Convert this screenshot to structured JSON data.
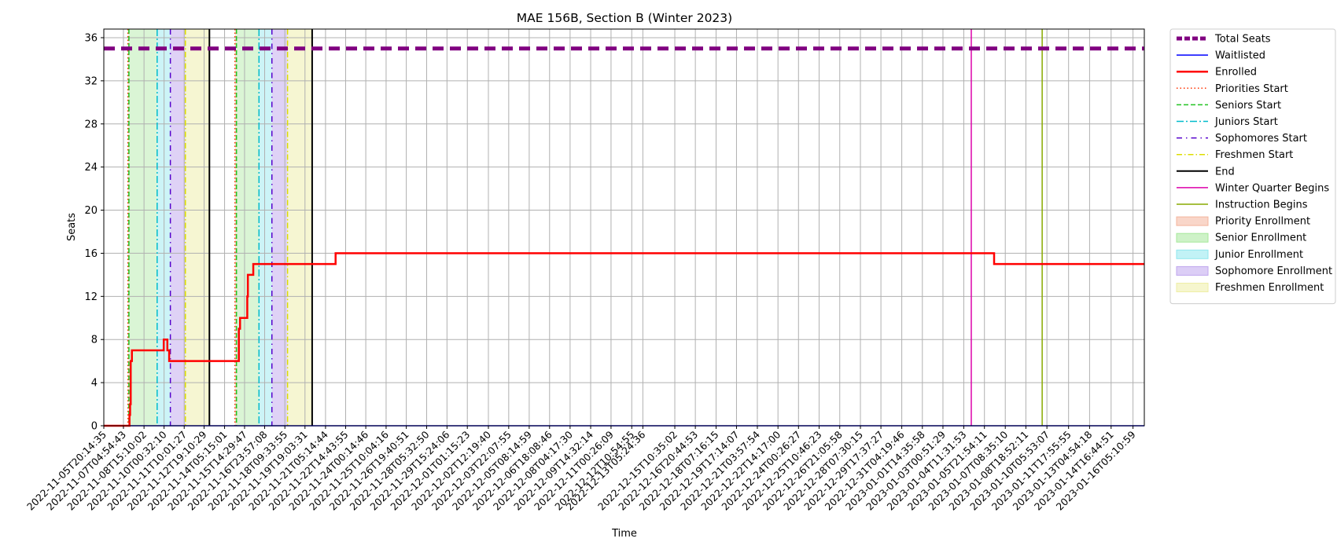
{
  "chart_data": {
    "type": "line",
    "title": "MAE 156B, Section B (Winter 2023)",
    "xlabel": "Time",
    "ylabel": "Seats",
    "ylim": [
      0,
      36.8
    ],
    "y_ticks": [
      0,
      4,
      8,
      12,
      16,
      20,
      24,
      28,
      32,
      36
    ],
    "x_range": [
      "2022-11-05T20:14:35",
      "2023-01-17T00:00:00"
    ],
    "x_tick_labels": [
      "2022-11-05T20:14:35",
      "2022-11-07T04:54:43",
      "2022-11-08T15:10:02",
      "2022-11-10T00:32:10",
      "2022-11-11T10:01:27",
      "2022-11-12T19:10:29",
      "2022-11-14T05:15:01",
      "2022-11-15T14:29:47",
      "2022-11-16T23:57:08",
      "2022-11-18T09:33:55",
      "2022-11-19T19:03:31",
      "2022-11-21T05:14:44",
      "2022-11-22T14:43:55",
      "2022-11-24T00:14:46",
      "2022-11-25T10:04:16",
      "2022-11-26T19:40:51",
      "2022-11-28T05:32:50",
      "2022-11-29T15:24:06",
      "2022-12-01T01:15:23",
      "2022-12-02T12:19:40",
      "2022-12-03T22:07:55",
      "2022-12-05T08:14:59",
      "2022-12-06T18:08:46",
      "2022-12-08T04:17:30",
      "2022-12-09T14:32:14",
      "2022-12-11T00:26:09",
      "2022-12-12T10:54:55",
      "2022-12-13T05:24:36",
      "2022-12-15T10:35:02",
      "2022-12-16T20:44:53",
      "2022-12-18T07:16:15",
      "2022-12-19T17:14:07",
      "2022-12-21T03:57:54",
      "2022-12-22T14:17:00",
      "2022-12-24T00:26:27",
      "2022-12-25T10:46:23",
      "2022-12-26T21:05:58",
      "2022-12-28T07:30:15",
      "2022-12-29T17:37:27",
      "2022-12-31T04:19:46",
      "2023-01-01T14:35:58",
      "2023-01-03T00:51:29",
      "2023-01-04T11:31:53",
      "2023-01-05T21:54:11",
      "2023-01-07T08:35:10",
      "2023-01-08T18:52:11",
      "2023-01-10T05:53:07",
      "2023-01-11T17:55:55",
      "2023-01-13T04:54:18",
      "2023-01-14T16:44:51",
      "2023-01-16T05:10:59"
    ],
    "series": [
      {
        "name": "Total Seats",
        "color": "#800080",
        "style": "thick-dashed",
        "values": [
          [
            "2022-11-05T20:14:35",
            35
          ],
          [
            "2023-01-17T00:00:00",
            35
          ]
        ]
      },
      {
        "name": "Waitlisted",
        "color": "#0000ff",
        "style": "solid",
        "values": [
          [
            "2022-11-05T20:14:35",
            0
          ],
          [
            "2023-01-17T00:00:00",
            0
          ]
        ]
      },
      {
        "name": "Enrolled",
        "color": "#ff0000",
        "style": "step",
        "values": [
          [
            "2022-11-05T20:14:35",
            0
          ],
          [
            "2022-11-07T14:30:00",
            0
          ],
          [
            "2022-11-07T15:00:00",
            1
          ],
          [
            "2022-11-07T16:00:00",
            2
          ],
          [
            "2022-11-07T17:00:00",
            6
          ],
          [
            "2022-11-07T19:00:00",
            7
          ],
          [
            "2022-11-10T00:00:00",
            8
          ],
          [
            "2022-11-10T06:00:00",
            7
          ],
          [
            "2022-11-10T09:00:00",
            6
          ],
          [
            "2022-11-15T04:00:00",
            6
          ],
          [
            "2022-11-15T05:00:00",
            9
          ],
          [
            "2022-11-15T07:00:00",
            10
          ],
          [
            "2022-11-15T19:00:00",
            12
          ],
          [
            "2022-11-15T20:00:00",
            14
          ],
          [
            "2022-11-16T05:00:00",
            15
          ],
          [
            "2022-11-21T20:00:00",
            15
          ],
          [
            "2022-11-21T22:00:00",
            16
          ],
          [
            "2023-01-06T13:00:00",
            16
          ],
          [
            "2023-01-06T14:00:00",
            15
          ],
          [
            "2023-01-17T00:00:00",
            15
          ]
        ]
      }
    ],
    "vertical_lines": [
      {
        "name": "Priorities Start",
        "color": "#ff3300",
        "dash": "1.5,3",
        "x": [
          "2022-11-07T12:20:00",
          "2022-11-14T22:30:00"
        ]
      },
      {
        "name": "Seniors Start",
        "color": "#22c422",
        "dash": "6,3",
        "x": [
          "2022-11-07T14:00:00",
          "2022-11-15T01:00:00"
        ]
      },
      {
        "name": "Juniors Start",
        "color": "#00bbcc",
        "dash": "9,3,2,3",
        "x": [
          "2022-11-09T13:00:00",
          "2022-11-16T14:30:00"
        ]
      },
      {
        "name": "Sophomores Start",
        "color": "#5500cc",
        "dash": "7,5,1.5,5",
        "x": [
          "2022-11-10T11:00:00",
          "2022-11-17T12:00:00"
        ]
      },
      {
        "name": "Freshmen Start",
        "color": "#dddd00",
        "dash": "7,3,1.5,3",
        "x": [
          "2022-11-11T12:00:00",
          "2022-11-18T14:00:00"
        ]
      },
      {
        "name": "End",
        "color": "#000000",
        "dash": "",
        "x": [
          "2022-11-13T04:00:00",
          "2022-11-20T07:00:00"
        ]
      },
      {
        "name": "Winter Quarter Begins",
        "color": "#dd00aa",
        "dash": "",
        "x": [
          "2023-01-05T00:00:00"
        ]
      },
      {
        "name": "Instruction Begins",
        "color": "#88aa00",
        "dash": "",
        "x": [
          "2023-01-09T22:00:00"
        ]
      }
    ],
    "shaded_regions": [
      {
        "name": "Priority Enrollment",
        "color": "#f4b49c",
        "opacity": 0.45,
        "ranges": [
          [
            "2022-11-07T12:20:00",
            "2022-11-07T14:00:00"
          ],
          [
            "2022-11-14T22:30:00",
            "2022-11-15T01:00:00"
          ]
        ]
      },
      {
        "name": "Senior Enrollment",
        "color": "#a6e89a",
        "opacity": 0.42,
        "ranges": [
          [
            "2022-11-07T14:00:00",
            "2022-11-09T13:00:00"
          ],
          [
            "2022-11-15T01:00:00",
            "2022-11-16T14:30:00"
          ]
        ]
      },
      {
        "name": "Junior Enrollment",
        "color": "#8fe7ee",
        "opacity": 0.45,
        "ranges": [
          [
            "2022-11-09T13:00:00",
            "2022-11-10T11:00:00"
          ],
          [
            "2022-11-16T14:30:00",
            "2022-11-17T12:00:00"
          ]
        ]
      },
      {
        "name": "Sophomore Enrollment",
        "color": "#bfa6ee",
        "opacity": 0.5,
        "ranges": [
          [
            "2022-11-10T11:00:00",
            "2022-11-11T12:00:00"
          ],
          [
            "2022-11-17T12:00:00",
            "2022-11-18T14:00:00"
          ]
        ]
      },
      {
        "name": "Freshmen Enrollment",
        "color": "#eeeea6",
        "opacity": 0.5,
        "ranges": [
          [
            "2022-11-11T12:00:00",
            "2022-11-13T04:00:00"
          ],
          [
            "2022-11-18T14:00:00",
            "2022-11-20T07:00:00"
          ]
        ]
      }
    ],
    "legend": {
      "placement": "outside-right",
      "entries": [
        {
          "label": "Total Seats",
          "kind": "line",
          "color": "#800080",
          "dash": "7,3",
          "width": 5
        },
        {
          "label": "Waitlisted",
          "kind": "line",
          "color": "#0000ff",
          "dash": "",
          "width": 1.5
        },
        {
          "label": "Enrolled",
          "kind": "line",
          "color": "#ff0000",
          "dash": "",
          "width": 2.5
        },
        {
          "label": "Priorities Start",
          "kind": "line",
          "color": "#ff3300",
          "dash": "1.5,3",
          "width": 1.5
        },
        {
          "label": "Seniors Start",
          "kind": "line",
          "color": "#22c422",
          "dash": "6,3",
          "width": 1.5
        },
        {
          "label": "Juniors Start",
          "kind": "line",
          "color": "#00bbcc",
          "dash": "9,3,2,3",
          "width": 1.5
        },
        {
          "label": "Sophomores Start",
          "kind": "line",
          "color": "#5500cc",
          "dash": "7,5,1.5,5",
          "width": 1.5
        },
        {
          "label": "Freshmen Start",
          "kind": "line",
          "color": "#dddd00",
          "dash": "7,3,1.5,3",
          "width": 1.5
        },
        {
          "label": "End",
          "kind": "line",
          "color": "#000000",
          "dash": "",
          "width": 2
        },
        {
          "label": "Winter Quarter Begins",
          "kind": "line",
          "color": "#dd00aa",
          "dash": "",
          "width": 1.5
        },
        {
          "label": "Instruction Begins",
          "kind": "line",
          "color": "#88aa00",
          "dash": "",
          "width": 1.5
        },
        {
          "label": "Priority Enrollment",
          "kind": "patch",
          "color": "#f4b49c"
        },
        {
          "label": "Senior Enrollment",
          "kind": "patch",
          "color": "#a6e89a"
        },
        {
          "label": "Junior Enrollment",
          "kind": "patch",
          "color": "#8fe7ee"
        },
        {
          "label": "Sophomore Enrollment",
          "kind": "patch",
          "color": "#bfa6ee"
        },
        {
          "label": "Freshmen Enrollment",
          "kind": "patch",
          "color": "#eeeea6"
        }
      ]
    },
    "grid": true
  }
}
